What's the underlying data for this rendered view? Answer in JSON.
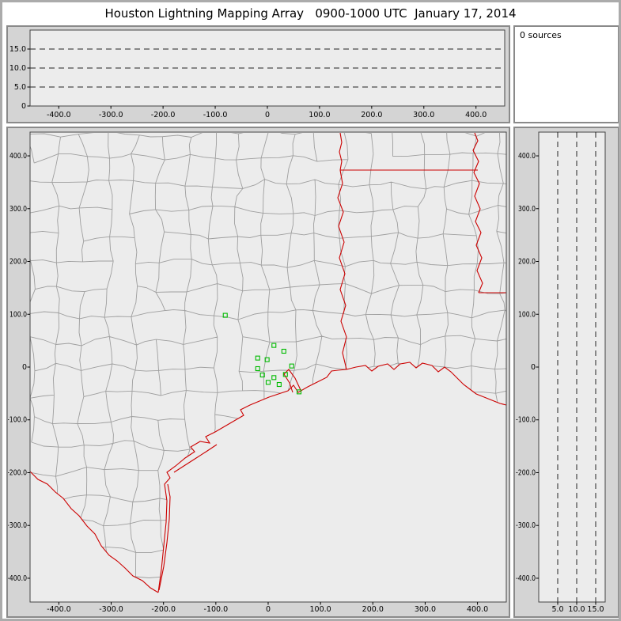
{
  "title": "Houston Lightning Mapping Array   0900-1000 UTC  January 17, 2014",
  "sources_panel": {
    "label": "0 sources"
  },
  "colors": {
    "window_border": "#ababab",
    "frame_bg": "#d4d4d4",
    "plot_bg": "#ececec",
    "frame_border": "#8a8a8a",
    "plot_border": "#444444",
    "grid_dash": "#222222",
    "county_line": "#9e9e9e",
    "state_line": "#cc0000",
    "station": "#00bb00",
    "text": "#000000"
  },
  "chart_data": [
    {
      "id": "altitude_vs_eastwest",
      "type": "scatter",
      "role": "altitude (km) vs east-west distance (km), empty (no lightning sources)",
      "x_tick_labels": [
        "-400.0",
        "-300.0",
        "-200.0",
        "-100.0",
        "0",
        "100.0",
        "200.0",
        "300.0",
        "400.0"
      ],
      "x_tick_values": [
        -400,
        -300,
        -200,
        -100,
        0,
        100,
        200,
        300,
        400
      ],
      "xlim": [
        -455,
        455
      ],
      "y_tick_labels": [
        "15.0",
        "10.0",
        "5.0",
        "0"
      ],
      "y_tick_values": [
        15,
        10,
        5,
        0
      ],
      "ylim": [
        0,
        20
      ],
      "dashed_gridlines_km": [
        5,
        10,
        15
      ],
      "points": []
    },
    {
      "id": "plan_view_map",
      "type": "scatter",
      "role": "plan-view map centered on Houston, km east-west vs km north-south, green squares = LMA stations",
      "x_tick_labels": [
        "-400.0",
        "-300.0",
        "-200.0",
        "-100.0",
        "0",
        "100.0",
        "200.0",
        "300.0",
        "400.0"
      ],
      "x_tick_values": [
        -400,
        -300,
        -200,
        -100,
        0,
        100,
        200,
        300,
        400
      ],
      "xlim": [
        -455,
        455
      ],
      "y_tick_labels": [
        "400.0",
        "300.0",
        "200.0",
        "100.0",
        "0",
        "-100.0",
        "-200.0",
        "-300.0",
        "-400.0"
      ],
      "y_tick_values": [
        400,
        300,
        200,
        100,
        0,
        -100,
        -200,
        -300,
        -400
      ],
      "ylim": [
        -445,
        445
      ],
      "stations_km": [
        [
          -82,
          98
        ],
        [
          11,
          41
        ],
        [
          30,
          30
        ],
        [
          -20,
          17
        ],
        [
          -2,
          14
        ],
        [
          -20,
          -3
        ],
        [
          -11,
          -15
        ],
        [
          11,
          -20
        ],
        [
          0,
          -29
        ],
        [
          21,
          -33
        ],
        [
          33,
          -14
        ],
        [
          45,
          2
        ],
        [
          59,
          -47
        ]
      ],
      "points": []
    },
    {
      "id": "altitude_vs_northsouth",
      "type": "scatter",
      "role": "altitude (km) vs north-south distance (km), empty (no lightning sources)",
      "x_tick_labels": [
        "5.0",
        "10.0",
        "15.0"
      ],
      "x_tick_values": [
        5,
        10,
        15
      ],
      "xlim": [
        0,
        17.5
      ],
      "y_tick_labels": [
        "400.0",
        "300.0",
        "200.0",
        "100.0",
        "0",
        "-100.0",
        "-200.0",
        "-300.0",
        "-400.0"
      ],
      "y_tick_values": [
        400,
        300,
        200,
        100,
        0,
        -100,
        -200,
        -300,
        -400
      ],
      "ylim": [
        -445,
        445
      ],
      "dashed_gridlines_km": [
        5,
        10,
        15
      ],
      "points": []
    }
  ]
}
